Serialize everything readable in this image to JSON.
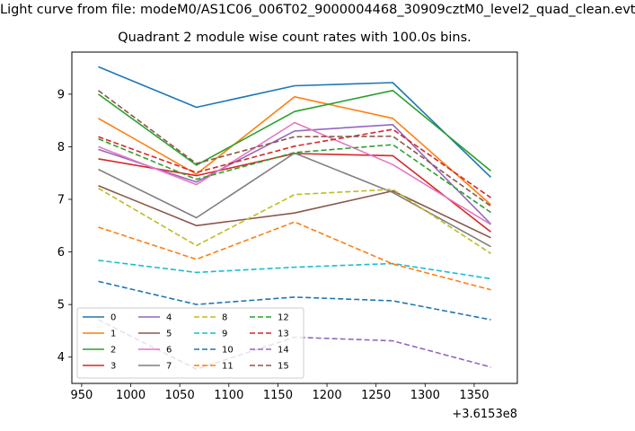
{
  "suptitle": "Light curve from file: modeM0/AS1C06_006T02_9000004468_30909cztM0_level2_quad_clean.evt",
  "chart_data": {
    "type": "line",
    "title": "Quadrant 2 module wise count rates with 100.0s bins.",
    "xlabel": "",
    "ylabel": "",
    "x_offset_label": "+3.6153e8",
    "x": [
      967,
      1067,
      1167,
      1267,
      1367
    ],
    "xlim": [
      940,
      1394
    ],
    "ylim": [
      3.5,
      9.8
    ],
    "xticks": [
      950,
      1000,
      1050,
      1100,
      1150,
      1200,
      1250,
      1300,
      1350
    ],
    "yticks": [
      4,
      5,
      6,
      7,
      8,
      9
    ],
    "grid": false,
    "legend": {
      "placement": "lower-left",
      "columns": 4
    },
    "series": [
      {
        "name": "0",
        "color": "#1f77b4",
        "dash": "solid",
        "values": [
          9.52,
          8.75,
          9.16,
          9.22,
          7.42
        ]
      },
      {
        "name": "1",
        "color": "#ff7f0e",
        "dash": "solid",
        "values": [
          8.54,
          7.48,
          8.95,
          8.54,
          6.9
        ]
      },
      {
        "name": "2",
        "color": "#2ca02c",
        "dash": "solid",
        "values": [
          9.0,
          7.65,
          8.67,
          9.07,
          7.54
        ]
      },
      {
        "name": "3",
        "color": "#d62728",
        "dash": "solid",
        "values": [
          7.77,
          7.45,
          7.87,
          7.83,
          6.38
        ]
      },
      {
        "name": "4",
        "color": "#9467bd",
        "dash": "solid",
        "values": [
          7.95,
          7.33,
          8.3,
          8.42,
          6.53
        ]
      },
      {
        "name": "5",
        "color": "#8c564b",
        "dash": "solid",
        "values": [
          7.26,
          6.5,
          6.74,
          7.16,
          6.27
        ]
      },
      {
        "name": "6",
        "color": "#e377c2",
        "dash": "solid",
        "values": [
          8.0,
          7.28,
          8.46,
          7.66,
          6.52
        ]
      },
      {
        "name": "7",
        "color": "#7f7f7f",
        "dash": "solid",
        "values": [
          7.57,
          6.65,
          7.88,
          7.13,
          6.1
        ]
      },
      {
        "name": "8",
        "color": "#bcbd22",
        "dash": "dashed",
        "values": [
          7.21,
          6.12,
          7.09,
          7.19,
          5.97
        ]
      },
      {
        "name": "9",
        "color": "#17becf",
        "dash": "dashed",
        "values": [
          5.84,
          5.61,
          5.71,
          5.78,
          5.49
        ]
      },
      {
        "name": "10",
        "color": "#1f77b4",
        "dash": "dashed",
        "values": [
          5.44,
          5.0,
          5.14,
          5.07,
          4.71
        ]
      },
      {
        "name": "11",
        "color": "#ff7f0e",
        "dash": "dashed",
        "values": [
          6.47,
          5.86,
          6.57,
          5.77,
          5.28
        ]
      },
      {
        "name": "12",
        "color": "#2ca02c",
        "dash": "dashed",
        "values": [
          8.15,
          7.38,
          7.89,
          8.04,
          6.75
        ]
      },
      {
        "name": "13",
        "color": "#d62728",
        "dash": "dashed",
        "values": [
          8.19,
          7.51,
          8.01,
          8.33,
          7.03
        ]
      },
      {
        "name": "14",
        "color": "#9467bd",
        "dash": "dashed",
        "values": [
          4.71,
          3.77,
          4.38,
          4.31,
          3.81
        ]
      },
      {
        "name": "15",
        "color": "#8c564b",
        "dash": "dashed",
        "values": [
          9.07,
          7.68,
          8.19,
          8.2,
          6.87
        ]
      }
    ]
  }
}
